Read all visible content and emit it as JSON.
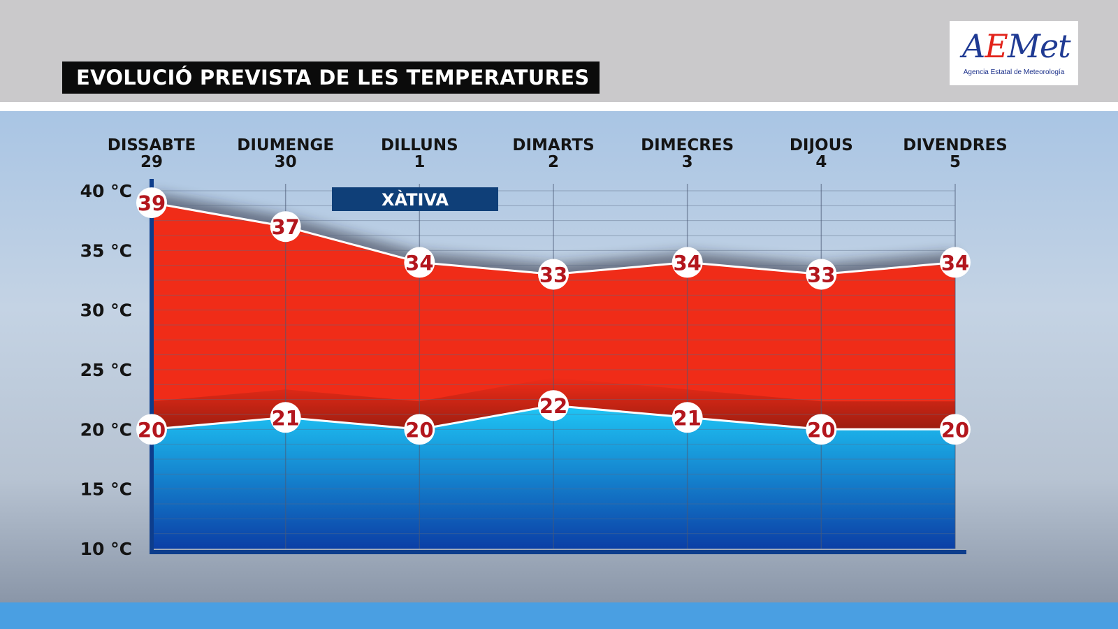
{
  "title": "EVOLUCIÓ PREVISTA DE LES TEMPERATURES",
  "logo": {
    "letters": [
      "A",
      "E",
      "M",
      "e",
      "t"
    ],
    "letter_colors": [
      "#1f3a93",
      "#e2231a",
      "#1f3a93",
      "#1f3a93",
      "#1f3a93"
    ],
    "subtitle": "Agencia Estatal de Meteorología"
  },
  "colors": {
    "max_fill": "#f02c18",
    "min_fill_top": "#1fc6f5",
    "min_fill_bottom": "#0b3fa6",
    "axis": "#0d3d8c",
    "label_text": "#b3161d",
    "location_box": "#0f3f78"
  },
  "chart_data": {
    "type": "area",
    "location": "XÀTIVA",
    "categories": [
      {
        "day": "DISSABTE",
        "date": "29"
      },
      {
        "day": "DIUMENGE",
        "date": "30"
      },
      {
        "day": "DILLUNS",
        "date": "1"
      },
      {
        "day": "DIMARTS",
        "date": "2"
      },
      {
        "day": "DIMECRES",
        "date": "3"
      },
      {
        "day": "DIJOUS",
        "date": "4"
      },
      {
        "day": "DIVENDRES",
        "date": "5"
      }
    ],
    "series": [
      {
        "values": [
          39,
          37,
          34,
          33,
          34,
          33,
          34
        ],
        "labels": [
          "39",
          "37",
          "34",
          "33",
          "34",
          "33",
          "34"
        ]
      },
      {
        "values": [
          20,
          21,
          20,
          22,
          21,
          20,
          20
        ],
        "labels": [
          "20",
          "21",
          "20",
          "22",
          "21",
          "20",
          "20"
        ]
      }
    ],
    "ylim": [
      10,
      40
    ],
    "yticks": [
      {
        "value": 40,
        "label": "40 °C"
      },
      {
        "value": 35,
        "label": "35 °C"
      },
      {
        "value": 30,
        "label": "30 °C"
      },
      {
        "value": 25,
        "label": "25 °C"
      },
      {
        "value": 20,
        "label": "20 °C"
      },
      {
        "value": 15,
        "label": "15 °C"
      },
      {
        "value": 10,
        "label": "10 °C"
      }
    ],
    "grid": true
  }
}
